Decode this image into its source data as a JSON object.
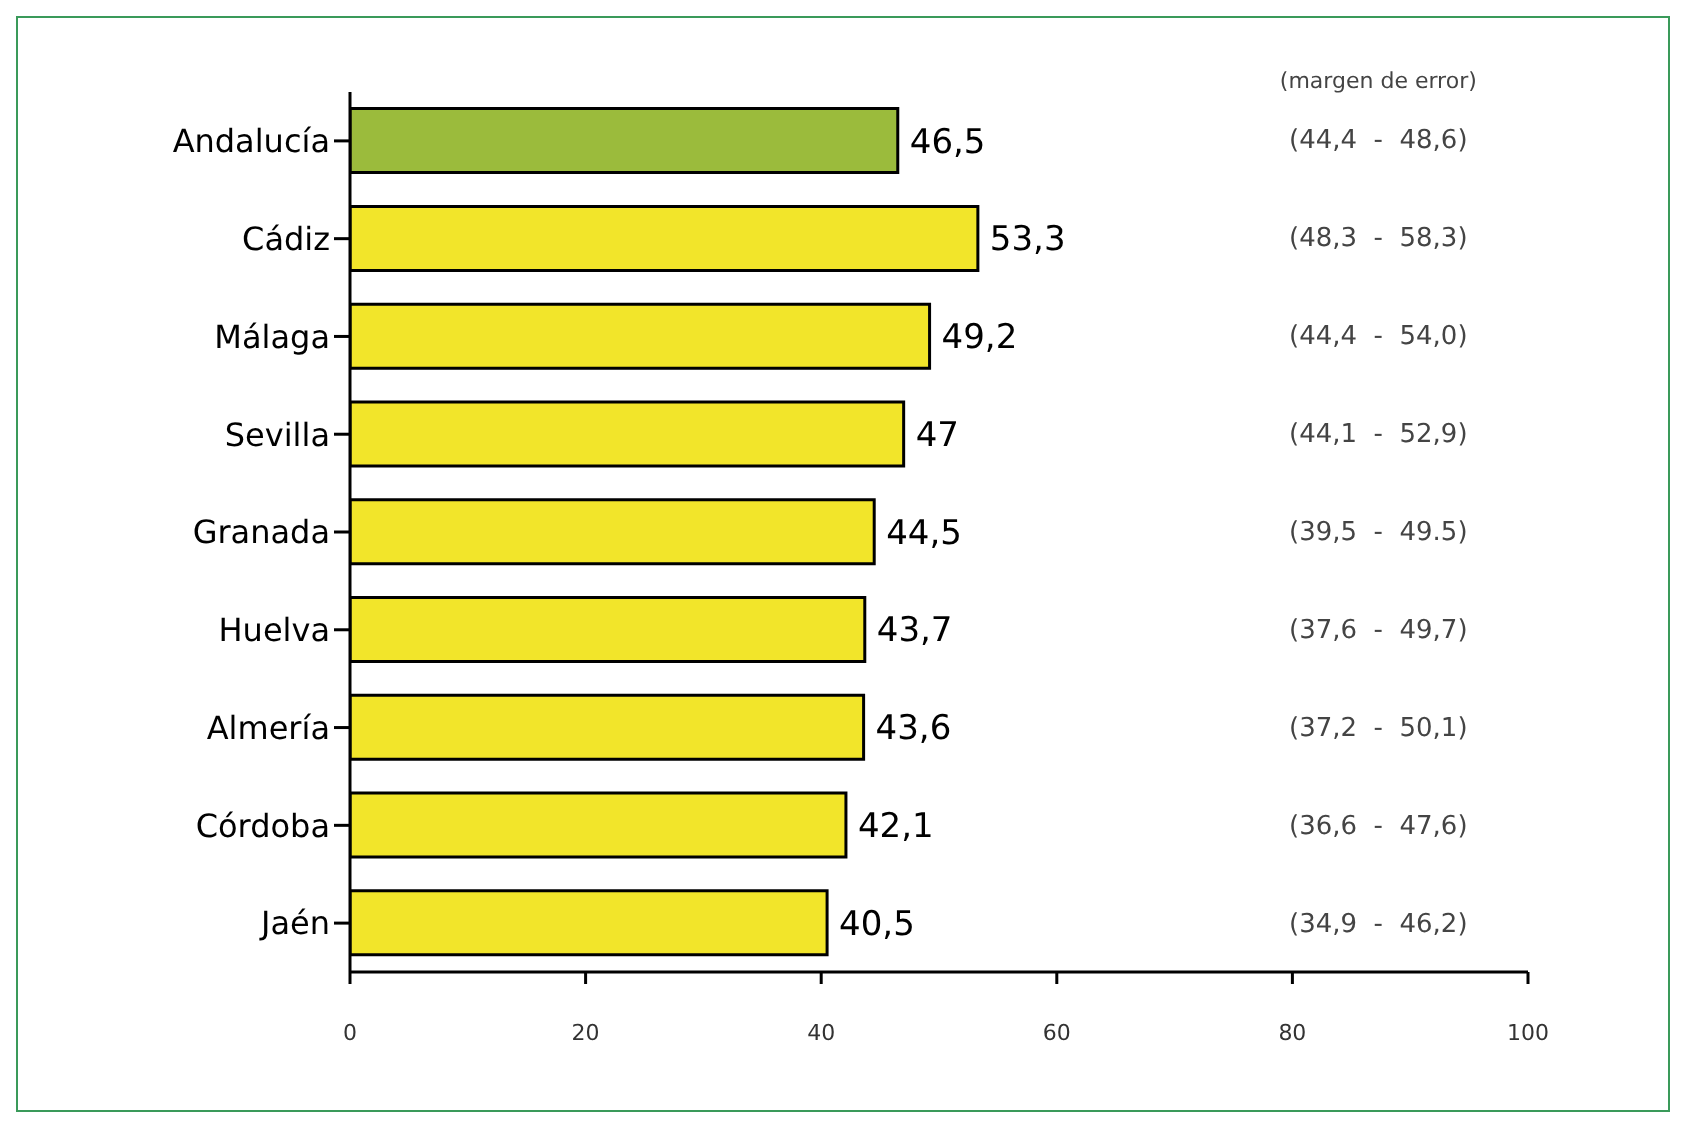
{
  "chart_data": {
    "type": "bar",
    "orientation": "horizontal",
    "categories": [
      "Andalucía",
      "Cádiz",
      "Málaga",
      "Sevilla",
      "Granada",
      "Huelva",
      "Almería",
      "Córdoba",
      "Jaén"
    ],
    "values": [
      46.5,
      53.3,
      49.2,
      47,
      44.5,
      43.7,
      43.6,
      42.1,
      40.5
    ],
    "colors": [
      "#9bbb3c",
      "#f2e52a",
      "#f2e52a",
      "#f2e52a",
      "#f2e52a",
      "#f2e52a",
      "#f2e52a",
      "#f2e52a",
      "#f2e52a"
    ],
    "value_labels": [
      "46,5",
      "53,3",
      "49,2",
      "47",
      "44,5",
      "43,7",
      "43,6",
      "42,1",
      "40,5"
    ],
    "xlim": [
      0,
      100
    ],
    "xticks": [
      0,
      20,
      40,
      60,
      80,
      100
    ],
    "grid": false,
    "annotations": [
      "(margen de error)",
      "(44,4  -  48,6)",
      "(48,3  -  58,3)",
      "(44,4  -  54,0)",
      "(44,1  -  52,9)",
      "(39,5  -  49.5)",
      "(37,6  -  49,7)",
      "(37,2  -  50,1)",
      "(36,6  -  47,6)",
      "(34,9  -  46,2)"
    ]
  }
}
